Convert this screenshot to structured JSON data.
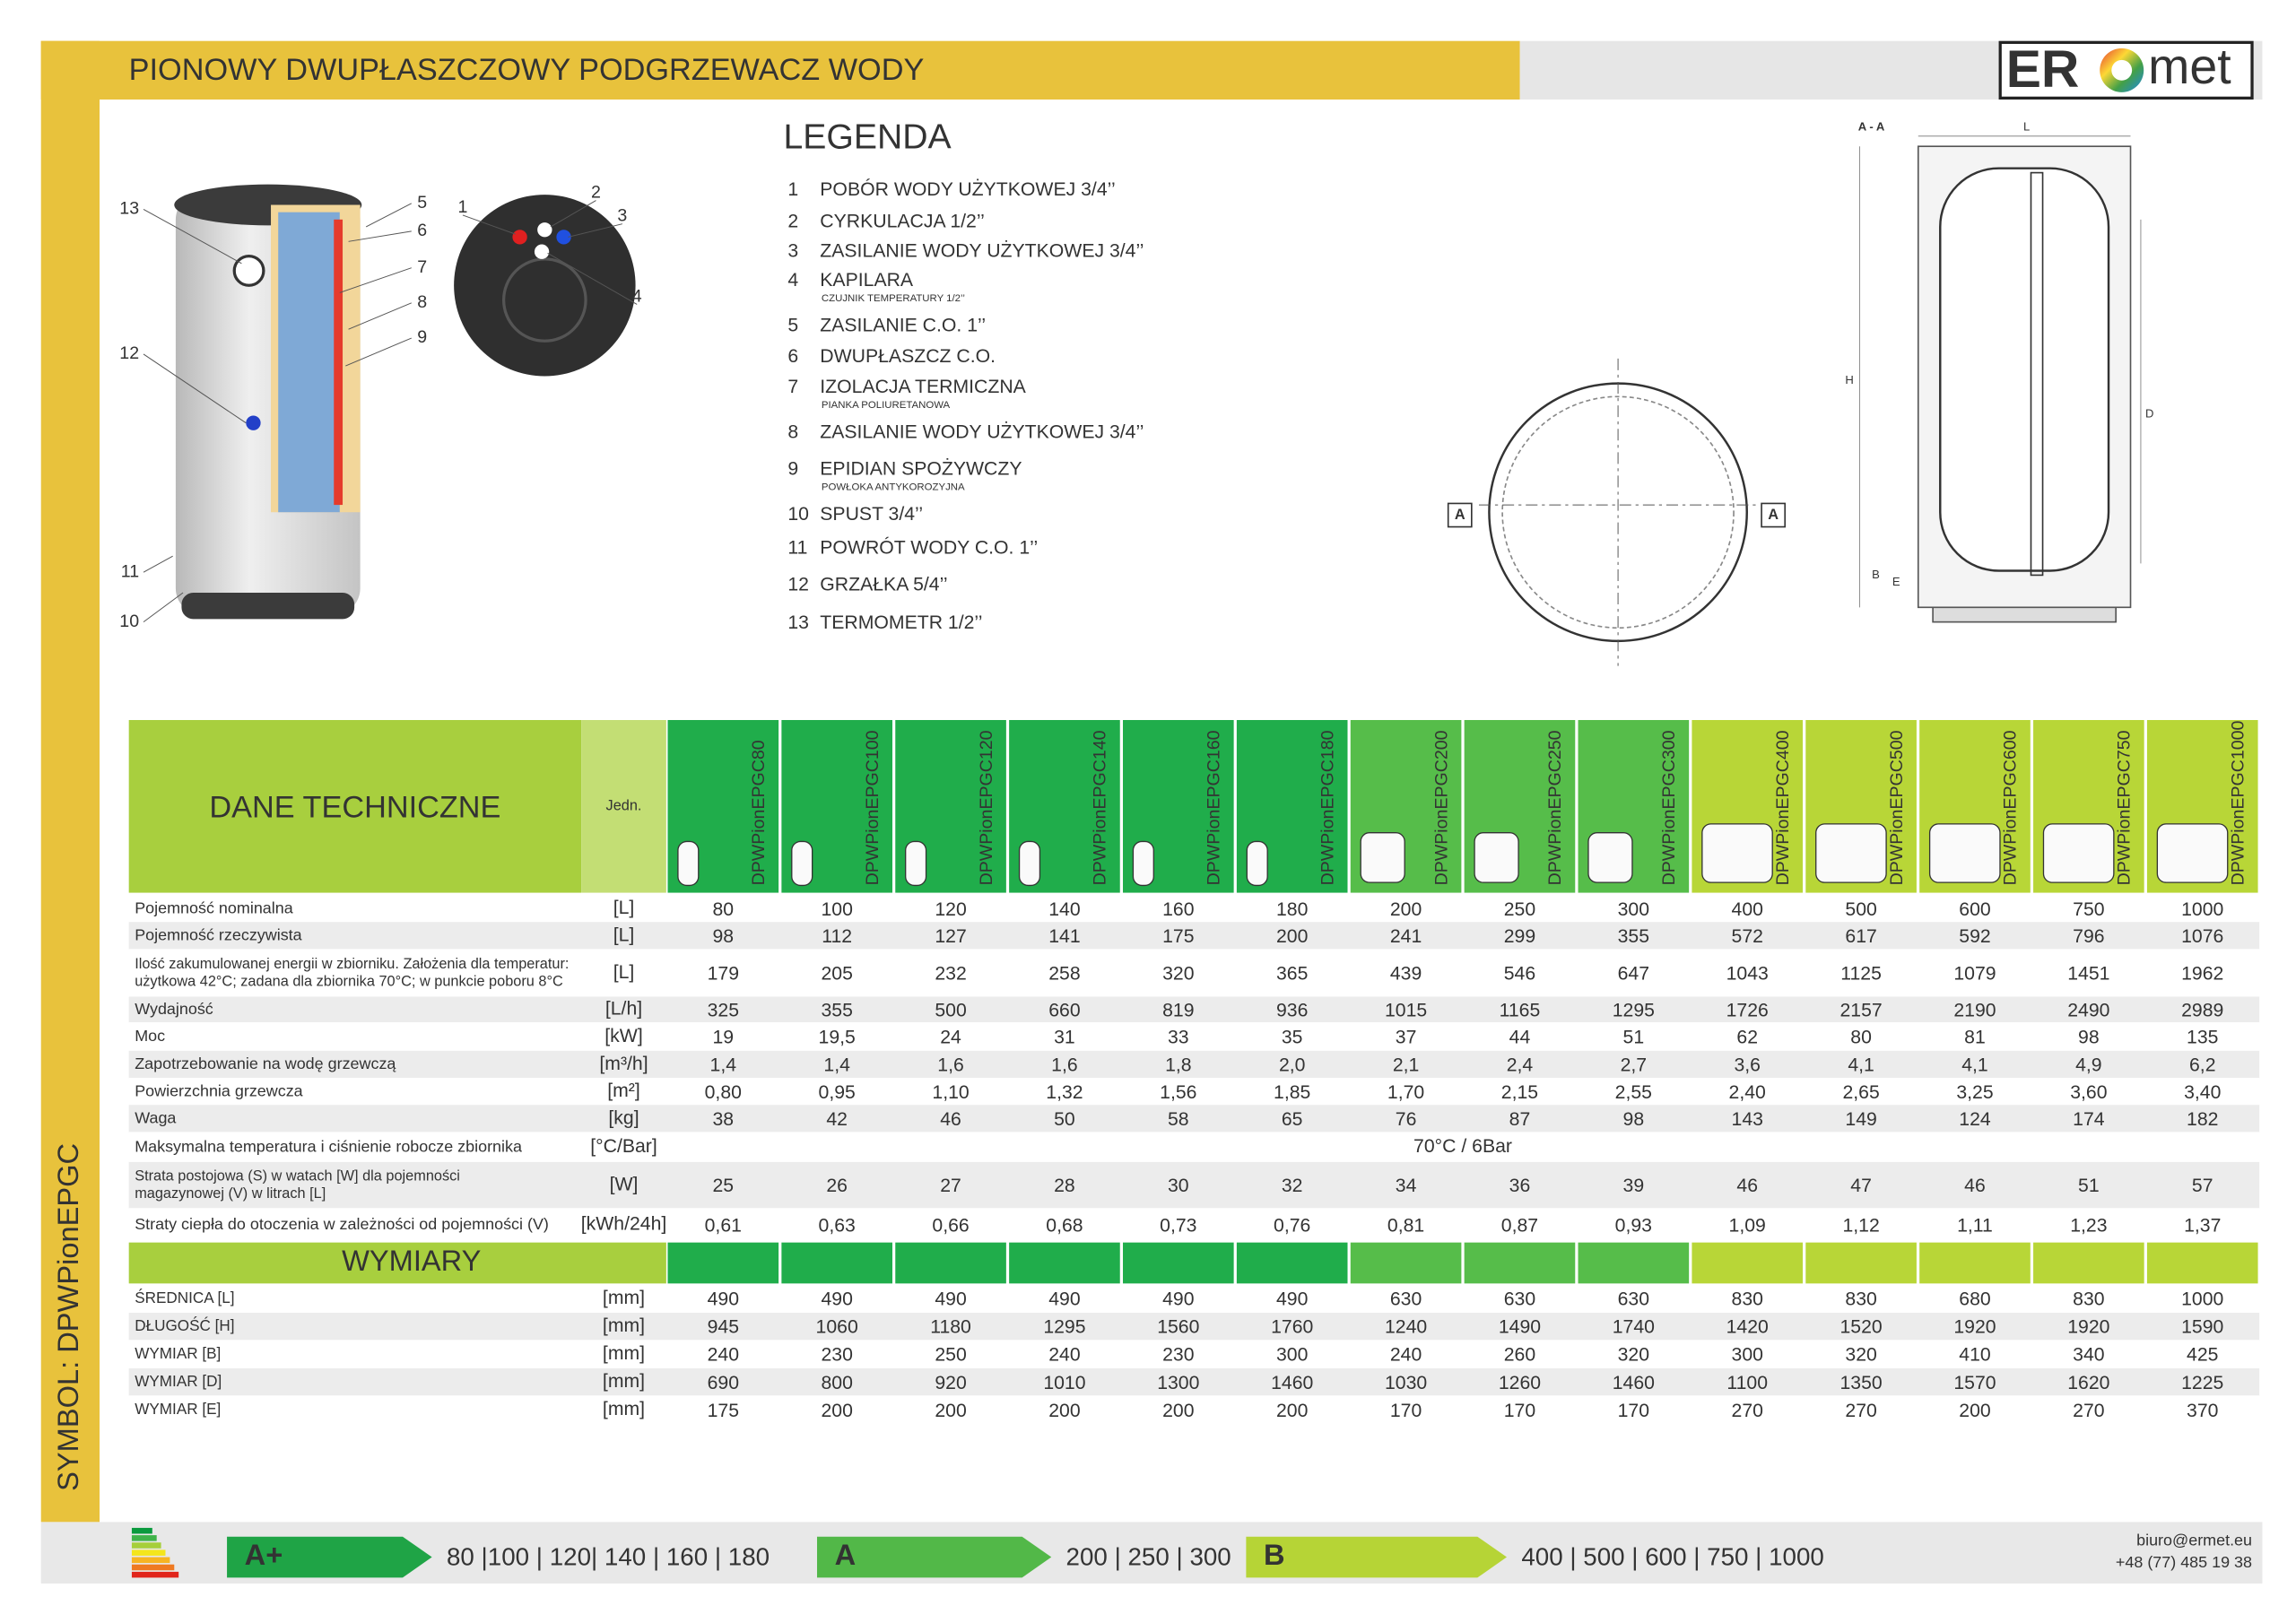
{
  "header": {
    "title": "PIONOWY DWUPŁASZCZOWY PODGRZEWACZ WODY",
    "logo_left": "ER",
    "logo_right": "met"
  },
  "symbol": "SYMBOL: DPWPionEPGC",
  "illustration": {
    "tank_callouts_left": [
      "13",
      "12",
      "11",
      "10"
    ],
    "tank_callouts_right": [
      "5",
      "6",
      "7",
      "8",
      "9"
    ],
    "top_view_callouts": [
      "1",
      "2",
      "3",
      "4"
    ],
    "section_labels": [
      "A - A",
      "L",
      "H",
      "D",
      "B",
      "E"
    ],
    "plan_labels": [
      "A",
      "A"
    ]
  },
  "legend": {
    "title": "LEGENDA",
    "items": [
      {
        "num": "1",
        "label": "POBÓR WODY UŻYTKOWEJ 3/4’’"
      },
      {
        "num": "2",
        "label": "CYRKULACJA 1/2’’"
      },
      {
        "num": "3",
        "label": "ZASILANIE WODY UŻYTKOWEJ 3/4’’"
      },
      {
        "num": "4",
        "label": "KAPILARA",
        "note": "CZUJNIK TEMPERATURY 1/2’’"
      },
      {
        "num": "5",
        "label": "ZASILANIE C.O. 1’’"
      },
      {
        "num": "6",
        "label": "DWUPŁASZCZ C.O."
      },
      {
        "num": "7",
        "label": "IZOLACJA TERMICZNA",
        "note": "PIANKA POLIURETANOWA"
      },
      {
        "num": "8",
        "label": "ZASILANIE WODY UŻYTKOWEJ 3/4’’"
      },
      {
        "num": "9",
        "label": "EPIDIAN SPOŻYWCZY",
        "note": "POWŁOKA ANTYKOROZYJNA"
      },
      {
        "num": "10",
        "label": "SPUST 3/4’’"
      },
      {
        "num": "11",
        "label": "POWRÓT WODY C.O. 1’’"
      },
      {
        "num": "12",
        "label": "GRZAŁKA 5/4’’"
      },
      {
        "num": "13",
        "label": "TERMOMETR 1/2’’"
      }
    ]
  },
  "table": {
    "title": "DANE TECHNICZNE",
    "unit_header": "Jedn.",
    "models": [
      "DPWPionEPGC80",
      "DPWPionEPGC100",
      "DPWPionEPGC120",
      "DPWPionEPGC140",
      "DPWPionEPGC160",
      "DPWPionEPGC180",
      "DPWPionEPGC200",
      "DPWPionEPGC250",
      "DPWPionEPGC300",
      "DPWPionEPGC400",
      "DPWPionEPGC500",
      "DPWPionEPGC600",
      "DPWPionEPGC750",
      "DPWPionEPGC1000"
    ],
    "rows": [
      {
        "label": "Pojemność nominalna",
        "unit": "[L]",
        "values": [
          80,
          100,
          120,
          140,
          160,
          180,
          200,
          250,
          300,
          400,
          500,
          600,
          750,
          1000
        ]
      },
      {
        "label": "Pojemność rzeczywista",
        "unit": "[L]",
        "values": [
          98,
          112,
          127,
          141,
          175,
          200,
          241,
          299,
          355,
          572,
          617,
          592,
          796,
          1076
        ]
      },
      {
        "label": [
          "Ilość zakumulowanej energii w zbiorniku. Założenia dla temperatur:",
          "użytkowa 42°C; zadana dla zbiornika 70°C; w punkcie poboru 8°C"
        ],
        "unit": "[L]",
        "values": [
          179,
          205,
          232,
          258,
          320,
          365,
          439,
          546,
          647,
          1043,
          1125,
          1079,
          1451,
          1962
        ]
      },
      {
        "label": "Wydajność",
        "unit": "[L/h]",
        "values": [
          325,
          355,
          500,
          660,
          819,
          936,
          1015,
          1165,
          1295,
          1726,
          2157,
          2190,
          2490,
          2989
        ]
      },
      {
        "label": "Moc",
        "unit": "[kW]",
        "values": [
          19,
          "19,5",
          24,
          31,
          33,
          35,
          37,
          44,
          51,
          62,
          80,
          81,
          98,
          135
        ]
      },
      {
        "label": "Zapotrzebowanie na wodę grzewczą",
        "unit": "[m³/h]",
        "values": [
          "1,4",
          "1,4",
          "1,6",
          "1,6",
          "1,8",
          "2,0",
          "2,1",
          "2,4",
          "2,7",
          "3,6",
          "4,1",
          "4,1",
          "4,9",
          "6,2"
        ]
      },
      {
        "label": "Powierzchnia grzewcza",
        "unit": "[m²]",
        "values": [
          "0,80",
          "0,95",
          "1,10",
          "1,32",
          "1,56",
          "1,85",
          "1,70",
          "2,15",
          "2,55",
          "2,40",
          "2,65",
          "3,25",
          "3,60",
          "3,40"
        ]
      },
      {
        "label": "Waga",
        "unit": "[kg]",
        "values": [
          38,
          42,
          46,
          50,
          58,
          65,
          76,
          87,
          98,
          143,
          149,
          124,
          174,
          182
        ]
      },
      {
        "label": "Maksymalna temperatura i ciśnienie robocze zbiornika",
        "unit": "[°C/Bar]",
        "merged": "70°C / 6Bar"
      },
      {
        "label": [
          "Strata postojowa (S) w watach [W] dla pojemności",
          "magazynowej (V) w litrach [L]"
        ],
        "unit": "[W]",
        "values": [
          25,
          26,
          27,
          28,
          30,
          32,
          34,
          36,
          39,
          46,
          47,
          46,
          51,
          57
        ]
      },
      {
        "label": "Straty ciepła do otoczenia w zależności od pojemności (V)",
        "unit": "[kWh/24h]",
        "values": [
          "0,61",
          "0,63",
          "0,66",
          "0,68",
          "0,73",
          "0,76",
          "0,81",
          "0,87",
          "0,93",
          "1,09",
          "1,12",
          "1,11",
          "1,23",
          "1,37"
        ]
      }
    ]
  },
  "dimensions": {
    "title": "WYMIARY",
    "rows": [
      {
        "label": "ŚREDNICA [L]",
        "unit": "[mm]",
        "values": [
          490,
          490,
          490,
          490,
          490,
          490,
          630,
          630,
          630,
          830,
          830,
          680,
          830,
          1000
        ]
      },
      {
        "label": "DŁUGOŚĆ [H]",
        "unit": "[mm]",
        "values": [
          945,
          1060,
          1180,
          1295,
          1560,
          1760,
          1240,
          1490,
          1740,
          1420,
          1520,
          1920,
          1920,
          1590
        ]
      },
      {
        "label": "WYMIAR [B]",
        "unit": "[mm]",
        "values": [
          240,
          230,
          250,
          240,
          230,
          300,
          240,
          260,
          320,
          300,
          320,
          410,
          340,
          425
        ]
      },
      {
        "label": "WYMIAR [D]",
        "unit": "[mm]",
        "values": [
          690,
          800,
          920,
          1010,
          1300,
          1460,
          1030,
          1260,
          1460,
          1100,
          1350,
          1570,
          1620,
          1225
        ]
      },
      {
        "label": "WYMIAR [E]",
        "unit": "[mm]",
        "values": [
          175,
          200,
          200,
          200,
          200,
          200,
          170,
          170,
          170,
          270,
          270,
          200,
          270,
          370
        ]
      }
    ]
  },
  "energy": [
    {
      "class": "A+",
      "models": "80 |100 | 120| 140 | 160 | 180"
    },
    {
      "class": "A",
      "models": "200 | 250 | 300"
    },
    {
      "class": "B",
      "models": "400 | 500 | 600 | 750 | 1000"
    }
  ],
  "contact": [
    "biuro@ermet.eu",
    "+48 (77) 485 19 38"
  ]
}
